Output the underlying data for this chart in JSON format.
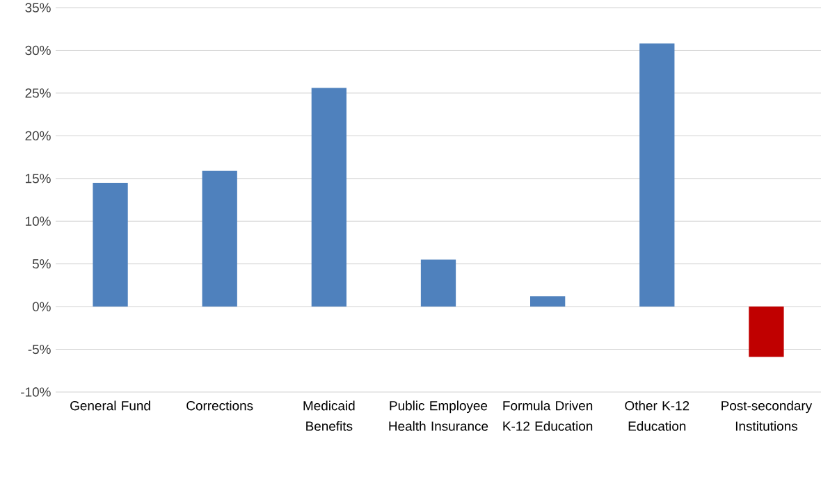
{
  "chart_data": {
    "type": "bar",
    "categories": [
      "General Fund",
      "Corrections",
      "Medicaid Benefits",
      "Public Employee Health Insurance",
      "Formula Driven K-12 Education",
      "Other K-12 Education",
      "Post-secondary Institutions"
    ],
    "values": [
      14.5,
      15.9,
      25.6,
      5.5,
      1.2,
      30.8,
      -5.9
    ],
    "colors": [
      "#4f81bd",
      "#4f81bd",
      "#4f81bd",
      "#4f81bd",
      "#4f81bd",
      "#4f81bd",
      "#c00000"
    ],
    "ylim": [
      -10,
      35
    ],
    "yticks": [
      {
        "value": -10,
        "label": "-10%"
      },
      {
        "value": -5,
        "label": "-5%"
      },
      {
        "value": 0,
        "label": "0%"
      },
      {
        "value": 5,
        "label": "5%"
      },
      {
        "value": 10,
        "label": "10%"
      },
      {
        "value": 15,
        "label": "15%"
      },
      {
        "value": 20,
        "label": "20%"
      },
      {
        "value": 25,
        "label": "25%"
      },
      {
        "value": 30,
        "label": "30%"
      },
      {
        "value": 35,
        "label": "35%"
      }
    ],
    "grid": "y"
  }
}
